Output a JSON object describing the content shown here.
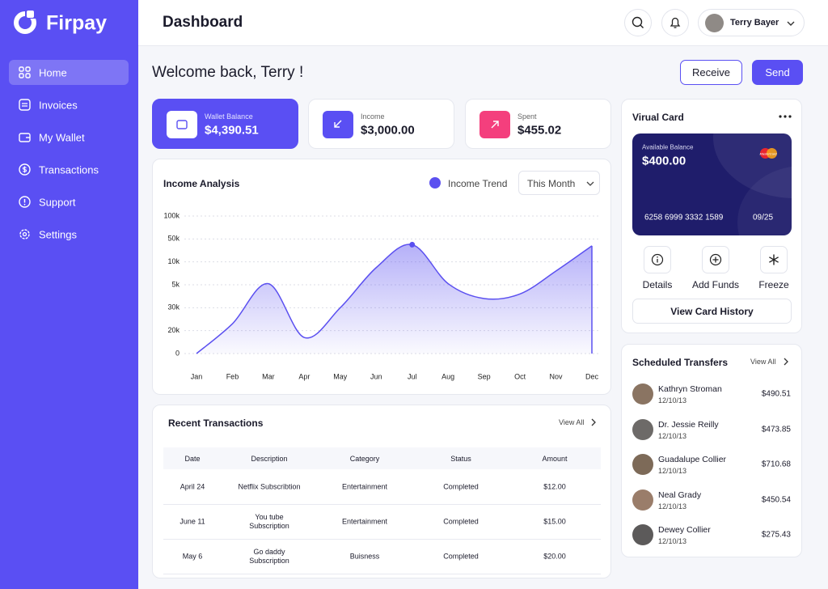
{
  "sidebar": {
    "brand": "Firpay",
    "nav": [
      "Home",
      "Invoices",
      "My Wallet",
      "Transactions",
      "Support",
      "Settings"
    ]
  },
  "header": {
    "title": "Dashboard",
    "user": "Terry Bayer"
  },
  "welcome": "Welcome back, Terry !",
  "buttons": {
    "receive": "Receive",
    "send": "Send"
  },
  "stats": [
    {
      "label": "Wallet Balance",
      "value": "$4,390.51"
    },
    {
      "label": "Income",
      "value": "$3,000.00"
    },
    {
      "label": "Spent",
      "value": "$455.02"
    }
  ],
  "chart_data": {
    "type": "area",
    "title": "Income Analysis",
    "filter": "This Month",
    "categories": [
      "Jan",
      "Feb",
      "Mar",
      "Apr",
      "May",
      "Jun",
      "Jul",
      "Aug",
      "Sep",
      "Oct",
      "Nov",
      "Dec"
    ],
    "series": [
      {
        "name": "Income Trend",
        "color": "#5b50f0",
        "values": [
          0,
          1.3,
          3.05,
          0.7,
          2.0,
          3.75,
          4.75,
          3.05,
          2.4,
          2.6,
          3.6,
          4.7
        ]
      }
    ],
    "ylim": [
      0,
      6
    ],
    "yticks": [
      0,
      {
        "value": 1,
        "label": "20k"
      },
      {
        "value": 2,
        "label": "30k"
      },
      {
        "value": 3,
        "label": "5k"
      },
      {
        "value": 4,
        "label": "10k"
      },
      {
        "value": 5,
        "label": "50k"
      },
      {
        "value": 6,
        "label": "100k"
      }
    ],
    "grid": true
  },
  "transactions": {
    "title": "Recent Transactions",
    "view_all": "View All",
    "columns": [
      "Date",
      "Description",
      "Category",
      "Status",
      "Amount"
    ],
    "rows": [
      [
        "April 24",
        "Netflix Subscribtion",
        "Entertainment",
        "Completed",
        "$12.00"
      ],
      [
        "June 11",
        "You tube Subscription",
        "Entertainment",
        "Completed",
        "$15.00"
      ],
      [
        "May 6",
        "Go daddy Subscription",
        "Buisness",
        "Completed",
        "$20.00"
      ]
    ]
  },
  "virtual_card": {
    "title": "Virual Card",
    "balance_label": "Available Balance",
    "balance": "$400.00",
    "brand": "MasterCard",
    "number": "6258 6999 3332 1589",
    "expiry": "09/25",
    "actions": [
      "Details",
      "Add Funds",
      "Freeze"
    ],
    "history": "View Card History"
  },
  "transfers": {
    "title": "Scheduled Transfers",
    "view_all": "View All",
    "items": [
      {
        "name": "Kathryn Stroman",
        "date": "12/10/13",
        "amount": "$490.51"
      },
      {
        "name": "Dr. Jessie Reilly",
        "date": "12/10/13",
        "amount": "$473.85"
      },
      {
        "name": "Guadalupe Collier",
        "date": "12/10/13",
        "amount": "$710.68"
      },
      {
        "name": "Neal Grady",
        "date": "12/10/13",
        "amount": "$450.54"
      },
      {
        "name": "Dewey Collier",
        "date": "12/10/13",
        "amount": "$275.43"
      }
    ]
  }
}
